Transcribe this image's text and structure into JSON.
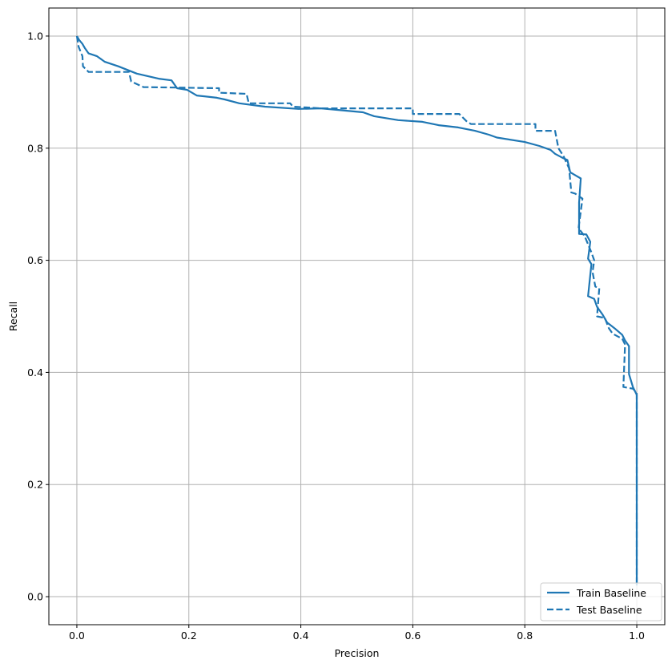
{
  "chart_data": {
    "type": "line",
    "title": "",
    "xlabel": "Precision",
    "ylabel": "Recall",
    "xlim": [
      -0.05,
      1.05
    ],
    "ylim": [
      -0.05,
      1.05
    ],
    "xticks": [
      "0.0",
      "0.2",
      "0.4",
      "0.6",
      "0.8",
      "1.0"
    ],
    "yticks": [
      "0.0",
      "0.2",
      "0.4",
      "0.6",
      "0.8",
      "1.0"
    ],
    "grid": true,
    "legend_placement": "lower-right",
    "color": "#1f77b4",
    "series": [
      {
        "name": "Train Baseline",
        "style": "solid",
        "points": [
          [
            0,
            1
          ],
          [
            0.004,
            0.993
          ],
          [
            0.01,
            0.986
          ],
          [
            0.014,
            0.979
          ],
          [
            0.021,
            0.969
          ],
          [
            0.036,
            0.964
          ],
          [
            0.05,
            0.954
          ],
          [
            0.074,
            0.946
          ],
          [
            0.107,
            0.933
          ],
          [
            0.146,
            0.924
          ],
          [
            0.169,
            0.921
          ],
          [
            0.179,
            0.907
          ],
          [
            0.197,
            0.904
          ],
          [
            0.214,
            0.894
          ],
          [
            0.25,
            0.89
          ],
          [
            0.264,
            0.887
          ],
          [
            0.29,
            0.88
          ],
          [
            0.336,
            0.874
          ],
          [
            0.396,
            0.87
          ],
          [
            0.436,
            0.871
          ],
          [
            0.511,
            0.864
          ],
          [
            0.531,
            0.857
          ],
          [
            0.574,
            0.85
          ],
          [
            0.617,
            0.847
          ],
          [
            0.646,
            0.841
          ],
          [
            0.681,
            0.837
          ],
          [
            0.711,
            0.831
          ],
          [
            0.736,
            0.824
          ],
          [
            0.75,
            0.819
          ],
          [
            0.8,
            0.811
          ],
          [
            0.826,
            0.804
          ],
          [
            0.846,
            0.797
          ],
          [
            0.854,
            0.79
          ],
          [
            0.867,
            0.783
          ],
          [
            0.876,
            0.779
          ],
          [
            0.881,
            0.757
          ],
          [
            0.893,
            0.75
          ],
          [
            0.9,
            0.746
          ],
          [
            0.897,
            0.703
          ],
          [
            0.897,
            0.647
          ],
          [
            0.91,
            0.646
          ],
          [
            0.917,
            0.633
          ],
          [
            0.913,
            0.603
          ],
          [
            0.919,
            0.593
          ],
          [
            0.913,
            0.536
          ],
          [
            0.924,
            0.531
          ],
          [
            0.929,
            0.517
          ],
          [
            0.939,
            0.503
          ],
          [
            0.947,
            0.489
          ],
          [
            0.96,
            0.479
          ],
          [
            0.974,
            0.467
          ],
          [
            0.979,
            0.457
          ],
          [
            0.986,
            0.447
          ],
          [
            0.986,
            0.397
          ],
          [
            0.993,
            0.374
          ],
          [
            1.0,
            0.36
          ],
          [
            1.0,
            0.02
          ]
        ]
      },
      {
        "name": "Test Baseline",
        "style": "dashed",
        "points": [
          [
            0,
            1
          ],
          [
            0.003,
            0.981
          ],
          [
            0.01,
            0.964
          ],
          [
            0.011,
            0.946
          ],
          [
            0.021,
            0.936
          ],
          [
            0.093,
            0.936
          ],
          [
            0.097,
            0.919
          ],
          [
            0.119,
            0.909
          ],
          [
            0.254,
            0.907
          ],
          [
            0.254,
            0.899
          ],
          [
            0.303,
            0.897
          ],
          [
            0.307,
            0.88
          ],
          [
            0.381,
            0.88
          ],
          [
            0.386,
            0.874
          ],
          [
            0.436,
            0.871
          ],
          [
            0.6,
            0.871
          ],
          [
            0.6,
            0.861
          ],
          [
            0.683,
            0.861
          ],
          [
            0.697,
            0.847
          ],
          [
            0.704,
            0.843
          ],
          [
            0.819,
            0.843
          ],
          [
            0.819,
            0.831
          ],
          [
            0.854,
            0.831
          ],
          [
            0.86,
            0.8
          ],
          [
            0.869,
            0.786
          ],
          [
            0.879,
            0.764
          ],
          [
            0.883,
            0.721
          ],
          [
            0.89,
            0.719
          ],
          [
            0.903,
            0.71
          ],
          [
            0.896,
            0.657
          ],
          [
            0.907,
            0.643
          ],
          [
            0.919,
            0.614
          ],
          [
            0.924,
            0.6
          ],
          [
            0.921,
            0.579
          ],
          [
            0.926,
            0.553
          ],
          [
            0.933,
            0.55
          ],
          [
            0.929,
            0.5
          ],
          [
            0.943,
            0.497
          ],
          [
            0.95,
            0.479
          ],
          [
            0.957,
            0.469
          ],
          [
            0.974,
            0.46
          ],
          [
            0.979,
            0.45
          ],
          [
            0.976,
            0.374
          ],
          [
            0.993,
            0.371
          ],
          [
            1.0,
            0.364
          ],
          [
            1.0,
            0.021
          ]
        ]
      }
    ]
  }
}
